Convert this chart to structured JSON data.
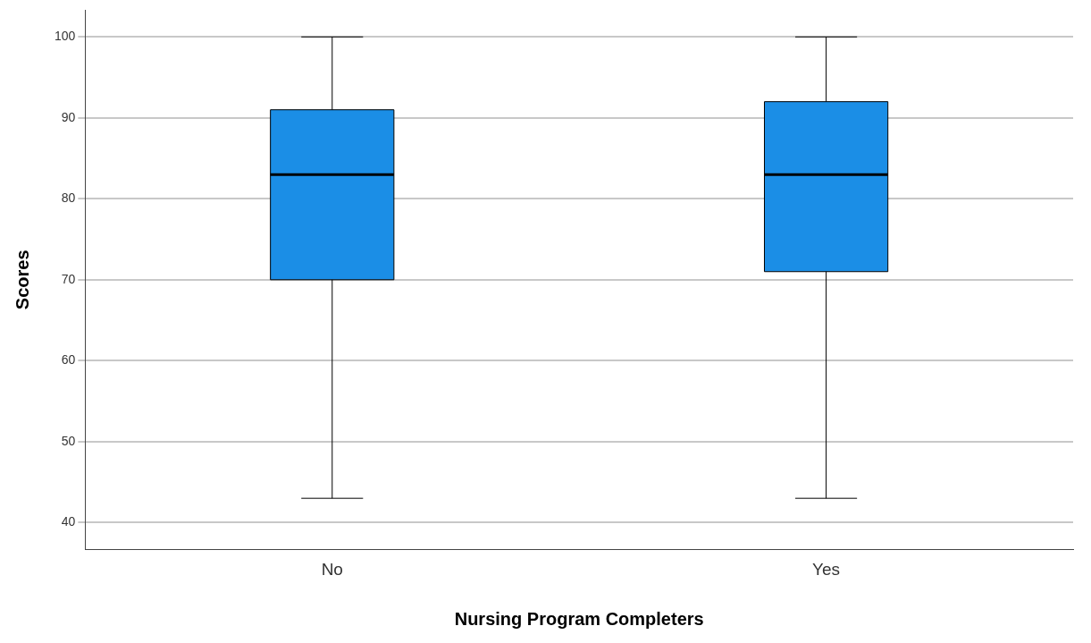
{
  "chart_data": {
    "type": "box",
    "xlabel": "Nursing Program Completers",
    "ylabel": "Scores",
    "categories": [
      "No",
      "Yes"
    ],
    "boxes": [
      {
        "low": 43,
        "q1": 70,
        "median": 83,
        "q3": 91,
        "high": 100
      },
      {
        "low": 43,
        "q1": 71,
        "median": 83,
        "q3": 92,
        "high": 100
      }
    ],
    "color": "#1b8ee6",
    "ylim": [
      36.7,
      103.3
    ],
    "yticks": [
      40,
      50,
      60,
      70,
      80,
      90,
      100
    ],
    "grid": "y",
    "legend": false
  }
}
